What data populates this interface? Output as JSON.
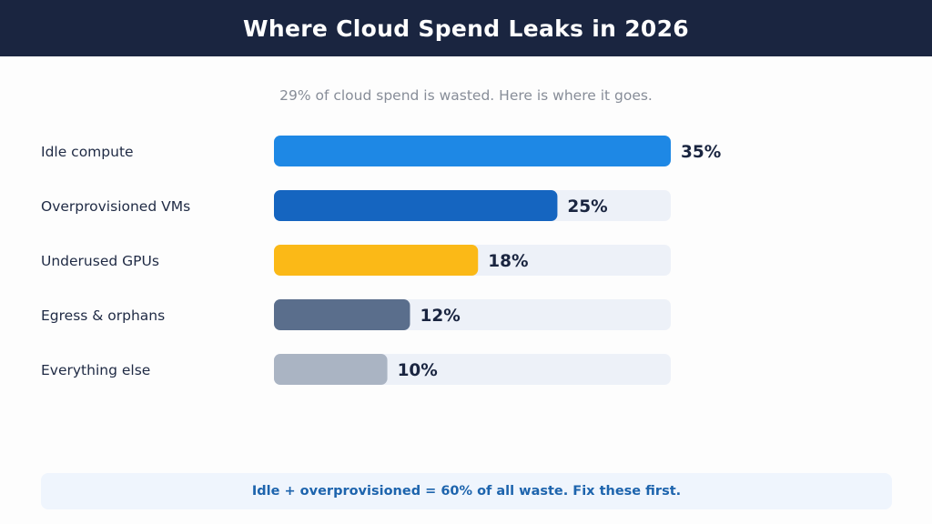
{
  "header": {
    "title": "Where Cloud Spend Leaks in 2026"
  },
  "subtitle": "29% of cloud spend is wasted. Here is where it goes.",
  "chart_data": {
    "type": "bar",
    "orientation": "horizontal",
    "categories": [
      "Idle compute",
      "Overprovisioned VMs",
      "Underused GPUs",
      "Egress & orphans",
      "Everything else"
    ],
    "values": [
      35,
      25,
      18,
      12,
      10
    ],
    "value_labels": [
      "35%",
      "25%",
      "18%",
      "12%",
      "10%"
    ],
    "unit": "%",
    "xlim": [
      0,
      35
    ],
    "colors": [
      "#1e88e5",
      "#1565c0",
      "#fbb917",
      "#5a6e8c",
      "#aab4c3"
    ],
    "track_color": "#edf1f8",
    "grid": false,
    "legend": "none"
  },
  "callout": "Idle + overprovisioned = 60% of all waste. Fix these first."
}
